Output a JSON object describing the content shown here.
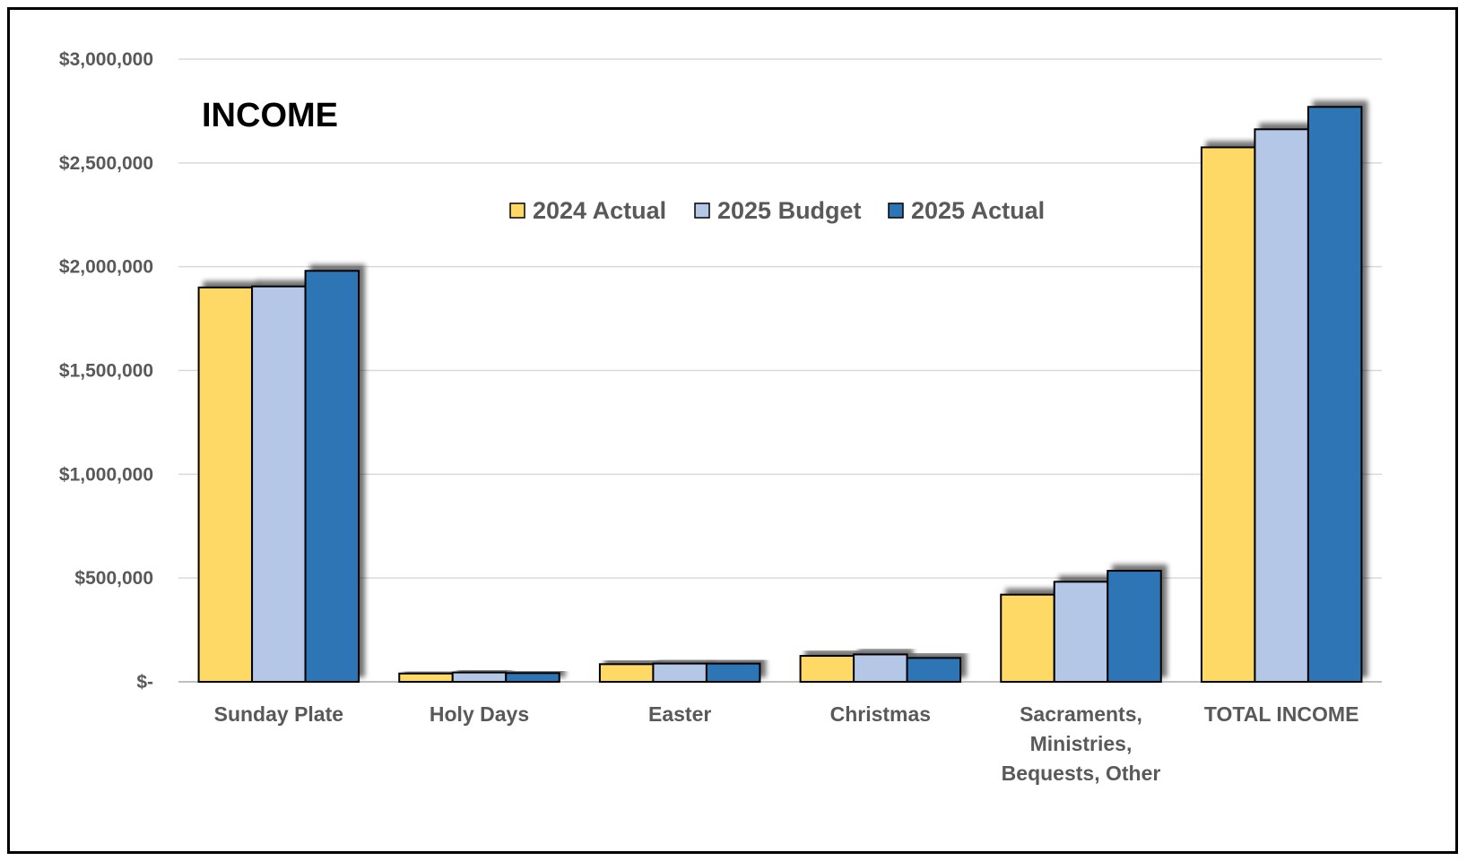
{
  "chart_data": {
    "type": "bar",
    "title": "INCOME",
    "categories": [
      [
        "Sunday Plate"
      ],
      [
        "Holy Days"
      ],
      [
        "Easter"
      ],
      [
        "Christmas"
      ],
      [
        "Sacraments,",
        "Ministries,",
        "Bequests, Other"
      ],
      [
        "TOTAL INCOME"
      ]
    ],
    "series": [
      {
        "name": "2024 Actual",
        "color": "#FFD966",
        "values": [
          1900000,
          40000,
          85000,
          125000,
          420000,
          2575000
        ]
      },
      {
        "name": "2025 Budget",
        "color": "#B4C7E7",
        "values": [
          1905000,
          45000,
          88000,
          132000,
          482000,
          2662000
        ]
      },
      {
        "name": "2025 Actual",
        "color": "#2E75B6",
        "values": [
          1980000,
          42000,
          88000,
          115000,
          535000,
          2770000
        ]
      }
    ],
    "yticks": [
      {
        "value": 0,
        "label": "$-"
      },
      {
        "value": 500000,
        "label": "$500,000"
      },
      {
        "value": 1000000,
        "label": "$1,000,000"
      },
      {
        "value": 1500000,
        "label": "$1,500,000"
      },
      {
        "value": 2000000,
        "label": "$2,000,000"
      },
      {
        "value": 2500000,
        "label": "$2,500,000"
      },
      {
        "value": 3000000,
        "label": "$3,000,000"
      }
    ],
    "ylim": [
      0,
      3000000
    ],
    "grid": true,
    "legend_position": "top-center"
  }
}
